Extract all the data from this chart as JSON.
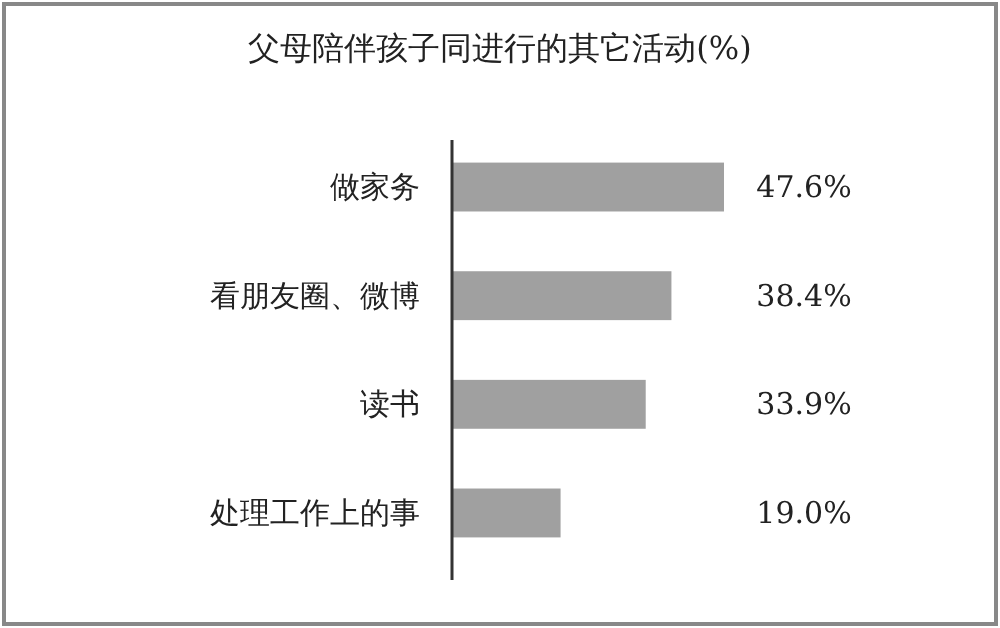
{
  "chart_data": {
    "type": "bar",
    "orientation": "horizontal",
    "title": "父母陪伴孩子同进行的其它活动(%)",
    "categories": [
      "做家务",
      "看朋友圈、微博",
      "读书",
      "处理工作上的事"
    ],
    "values": [
      47.6,
      38.4,
      33.9,
      19.0
    ],
    "value_labels": [
      "47.6%",
      "38.4%",
      "33.9%",
      "19.0%"
    ],
    "color": "#a0a0a0"
  }
}
